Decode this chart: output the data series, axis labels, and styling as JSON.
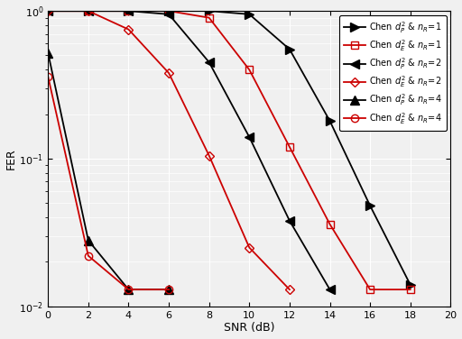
{
  "snr_nR1_P": [
    0,
    2,
    4,
    6,
    8,
    10,
    12,
    14,
    16,
    18
  ],
  "fer_nR1_P": [
    1.0,
    1.0,
    1.0,
    1.0,
    1.0,
    0.95,
    0.55,
    0.18,
    0.048,
    0.014
  ],
  "snr_nR1_E": [
    0,
    2,
    4,
    6,
    8,
    10,
    12,
    14,
    16,
    18
  ],
  "fer_nR1_E": [
    1.0,
    1.0,
    1.0,
    1.0,
    0.9,
    0.4,
    0.12,
    0.036,
    0.013,
    0.013
  ],
  "snr_nR2_P": [
    0,
    2,
    4,
    6,
    8,
    10,
    12,
    14
  ],
  "fer_nR2_P": [
    1.0,
    1.0,
    1.0,
    0.95,
    0.45,
    0.14,
    0.038,
    0.013
  ],
  "snr_nR2_E": [
    0,
    2,
    4,
    6,
    8,
    10,
    12
  ],
  "fer_nR2_E": [
    1.0,
    1.0,
    0.75,
    0.38,
    0.105,
    0.025,
    0.013
  ],
  "snr_nR4_P": [
    0,
    2,
    4,
    6
  ],
  "fer_nR4_P": [
    0.52,
    0.028,
    0.013,
    0.013
  ],
  "snr_nR4_E": [
    0,
    2,
    4,
    6
  ],
  "fer_nR4_E": [
    0.36,
    0.022,
    0.013,
    0.013
  ],
  "label_nR1_P": "Chen $d_P^2$ & $n_R$=1",
  "label_nR1_E": "Chen $d_E^2$ & $n_R$=1",
  "label_nR2_P": "Chen $d_P^2$ & $n_R$=2",
  "label_nR2_E": "Chen $d_E^2$ & $n_R$=2",
  "label_nR4_P": "Chen $d_P^2$ & $n_R$=4",
  "label_nR4_E": "Chen $d_E^2$ & $n_R$=4",
  "xlabel": "SNR (dB)",
  "ylabel": "FER",
  "xlim": [
    0,
    20
  ],
  "xticks": [
    0,
    2,
    4,
    6,
    8,
    10,
    12,
    14,
    16,
    18,
    20
  ],
  "color_black": "#000000",
  "color_red": "#cc0000",
  "bg_color": "#f0f0f0",
  "grid_color": "#ffffff",
  "linewidth": 1.3,
  "marker_size_black": 7,
  "marker_size_red": 6
}
